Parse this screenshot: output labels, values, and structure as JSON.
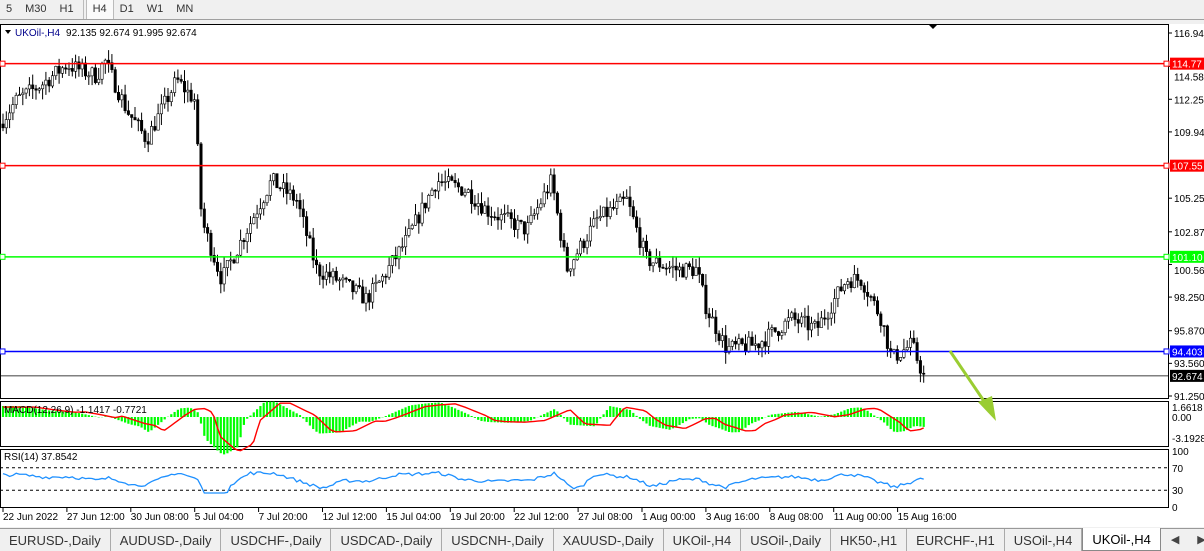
{
  "timeframes": [
    {
      "label": "5",
      "selected": false
    },
    {
      "label": "M30",
      "selected": false
    },
    {
      "label": "H1",
      "selected": false
    },
    {
      "label": "H4",
      "selected": true
    },
    {
      "label": "D1",
      "selected": false
    },
    {
      "label": "W1",
      "selected": false
    },
    {
      "label": "MN",
      "selected": false
    }
  ],
  "chart": {
    "title": "UKOil-,H4",
    "ohlc": "92.135 92.674 91.995 92.674",
    "current_price": "92.674",
    "price_ticks": [
      "116.940",
      "114.580",
      "112.250",
      "109.940",
      "105.250",
      "102.870",
      "100.560",
      "98.250",
      "95.870",
      "93.560",
      "91.250"
    ],
    "levels": [
      {
        "label": "114.77",
        "color": "#ff0000",
        "price": 114.77
      },
      {
        "label": "107.55",
        "color": "#ff0000",
        "price": 107.55
      },
      {
        "label": "101.10",
        "color": "#00ff00",
        "price": 101.1
      },
      {
        "label": "94.403",
        "color": "#0000ff",
        "price": 94.403
      }
    ],
    "date_labels": [
      "22 Jun 2022",
      "27 Jun 12:00",
      "30 Jun 08:00",
      "5 Jul 04:00",
      "7 Jul 20:00",
      "12 Jul 12:00",
      "15 Jul 04:00",
      "19 Jul 20:00",
      "22 Jul 12:00",
      "27 Jul 08:00",
      "1 Aug 00:00",
      "3 Aug 16:00",
      "8 Aug 08:00",
      "11 Aug 00:00",
      "15 Aug 16:00"
    ]
  },
  "macd": {
    "label": "MACD(12,26,9) -1.1417 -0.7721",
    "ticks": [
      "1.6618",
      "0.00",
      "-3.1928"
    ],
    "hist_color": "#00ff00",
    "signal_color": "#ff0000"
  },
  "rsi": {
    "label": "RSI(14) 37.8542",
    "ticks": [
      "100",
      "70",
      "30",
      "0"
    ],
    "line_color": "#1e90ff"
  },
  "tabs": [
    {
      "label": "EURUSD-,Daily"
    },
    {
      "label": "AUDUSD-,Daily"
    },
    {
      "label": "USDCHF-,Daily"
    },
    {
      "label": "USDCAD-,Daily"
    },
    {
      "label": "USDCNH-,Daily"
    },
    {
      "label": "XAUUSD-,Daily"
    },
    {
      "label": "UKOil-,H4"
    },
    {
      "label": "USOil-,Daily"
    },
    {
      "label": "HK50-,H1"
    },
    {
      "label": "EURCHF-,H1"
    },
    {
      "label": "USOil-,H4"
    },
    {
      "label": "UKOil-,H4",
      "selected": true
    }
  ],
  "scroll": {
    "left": "◀",
    "right": "▶"
  }
}
